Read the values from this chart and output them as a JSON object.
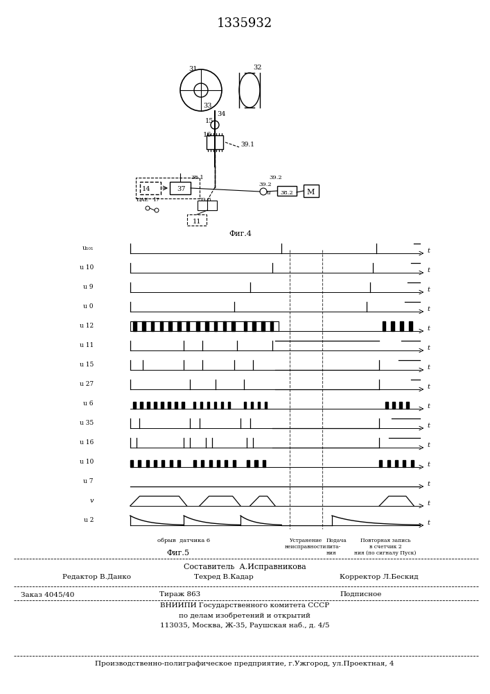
{
  "title_number": "1335932",
  "fig4_label": "Фиг.4",
  "fig5_label": "Фиг.5",
  "bg_color": "#ffffff",
  "line_color": "#000000",
  "signal_labels": [
    "u₁₀₁",
    "u 10",
    "u 9",
    "u 0",
    "u 12",
    "u 11",
    "u 15",
    "u 27",
    "u 6",
    "u 35",
    "u 16",
    "u 10",
    "u 7",
    "v",
    "u 2"
  ],
  "bottom_text_line1": "Составитель  А.Исправникова",
  "bottom_text_line2": "Редактор В.Данко     Техред В.Кадар          Корректор Л.Бескид",
  "bottom_text_line3": "Заказ 4045/40       Тираж 863            Подписное",
  "bottom_text_line4": "ВНИИПИ Государственного комитета СССР",
  "bottom_text_line5": "по делам изобретений и открытий",
  "bottom_text_line6": "113035, Москва, Ж-35, Раушская наб., д. 4/5",
  "bottom_text_line7": "Производственно-полиграфическое предприятие, г.Ужгород, ул.Проектная, 4",
  "annotation_obryv": "обрыв  датчика 6",
  "annotation_ustranenie": "Устранение\nнеисправности",
  "annotation_podacha": "Подача\nпита-\nния",
  "annotation_povtornaya": "Повторная запись\nв счетчик 2\nния (по сигналу Пуск)"
}
